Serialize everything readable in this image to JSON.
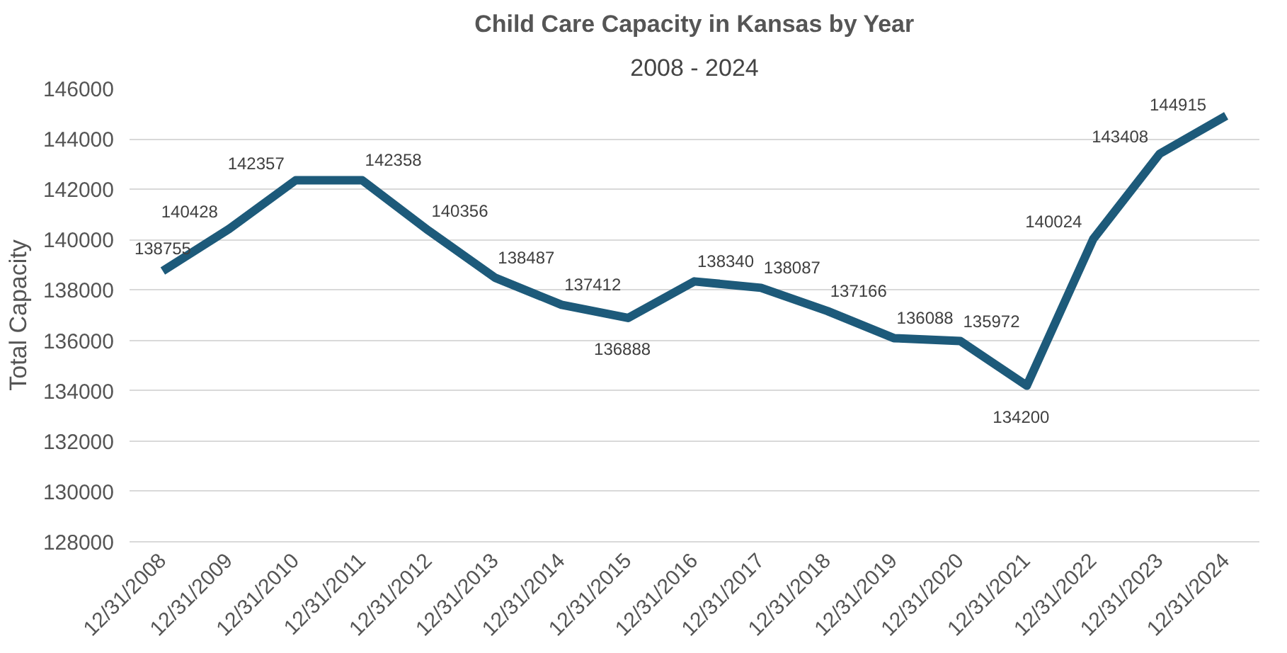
{
  "chart_data": {
    "type": "line",
    "title": "Child Care Capacity in Kansas by Year",
    "subtitle": "2008 - 2024",
    "ylabel": "Total Capacity",
    "categories": [
      "12/31/2008",
      "12/31/2009",
      "12/31/2010",
      "12/31/2011",
      "12/31/2012",
      "12/31/2013",
      "12/31/2014",
      "12/31/2015",
      "12/31/2016",
      "12/31/2017",
      "12/31/2018",
      "12/31/2019",
      "12/31/2020",
      "12/31/2021",
      "12/31/2022",
      "12/31/2023",
      "12/31/2024"
    ],
    "series": [
      {
        "color": "#1d5a7a",
        "values": [
          138755,
          140428,
          142357,
          142358,
          140356,
          138487,
          137412,
          136888,
          138340,
          138087,
          137166,
          136088,
          135972,
          134200,
          140024,
          143408,
          144915
        ]
      }
    ],
    "ylim": [
      128000,
      146000
    ],
    "yticks": [
      128000,
      130000,
      132000,
      134000,
      136000,
      138000,
      140000,
      142000,
      144000,
      146000
    ],
    "grid": "y",
    "data_labels": true,
    "marker": "none",
    "line_style": "solid"
  }
}
